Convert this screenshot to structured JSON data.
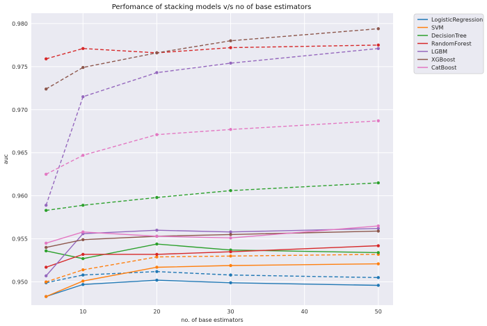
{
  "chart_data": {
    "type": "line",
    "title": "Perfomance of stacking models v/s no of base estimators",
    "xlabel": "no. of base estimators",
    "ylabel": "auc",
    "x": [
      5,
      10,
      20,
      30,
      50
    ],
    "xticks": [
      10,
      20,
      30,
      40,
      50
    ],
    "yticks": [
      "0.950",
      "0.955",
      "0.960",
      "0.965",
      "0.970",
      "0.975",
      "0.980"
    ],
    "xlim": [
      3,
      52
    ],
    "ylim": [
      0.9473,
      0.9812
    ],
    "grid": true,
    "legend_position": "outside-top-right",
    "series": [
      {
        "name": "LogisticRegression",
        "color": "#1f77b4",
        "solid": [
          0.9483,
          0.9497,
          0.9502,
          0.9499,
          0.9496
        ],
        "dashed": [
          0.9499,
          0.9508,
          0.9512,
          0.9508,
          0.9505
        ]
      },
      {
        "name": "SVM",
        "color": "#ff7f0e",
        "solid": [
          0.9483,
          0.9501,
          0.9517,
          0.9519,
          0.9521
        ],
        "dashed": [
          0.95,
          0.9514,
          0.9529,
          0.953,
          0.9532
        ]
      },
      {
        "name": "DecisionTree",
        "color": "#2ca02c",
        "solid": [
          0.9536,
          0.9527,
          0.9544,
          0.9537,
          0.9534
        ],
        "dashed": [
          0.9583,
          0.9589,
          0.9598,
          0.9606,
          0.9615
        ]
      },
      {
        "name": "RandomForest",
        "color": "#d62728",
        "solid": [
          0.9517,
          0.9532,
          0.9532,
          0.9535,
          0.9542
        ],
        "dashed": [
          0.9759,
          0.9771,
          0.9766,
          0.9772,
          0.9775
        ]
      },
      {
        "name": "LGBM",
        "color": "#9467bd",
        "solid": [
          0.9507,
          0.9556,
          0.956,
          0.9558,
          0.9562
        ],
        "dashed": [
          0.9589,
          0.9715,
          0.9743,
          0.9754,
          0.9771
        ]
      },
      {
        "name": "XGBoost",
        "color": "#8c564b",
        "solid": [
          0.954,
          0.9549,
          0.9553,
          0.9555,
          0.9559
        ],
        "dashed": [
          0.9724,
          0.9749,
          0.9766,
          0.978,
          0.9794
        ]
      },
      {
        "name": "CatBoost",
        "color": "#e377c2",
        "solid": [
          0.9545,
          0.9558,
          0.9553,
          0.9551,
          0.9565
        ],
        "dashed": [
          0.9625,
          0.9647,
          0.9671,
          0.9677,
          0.9687
        ]
      }
    ]
  }
}
